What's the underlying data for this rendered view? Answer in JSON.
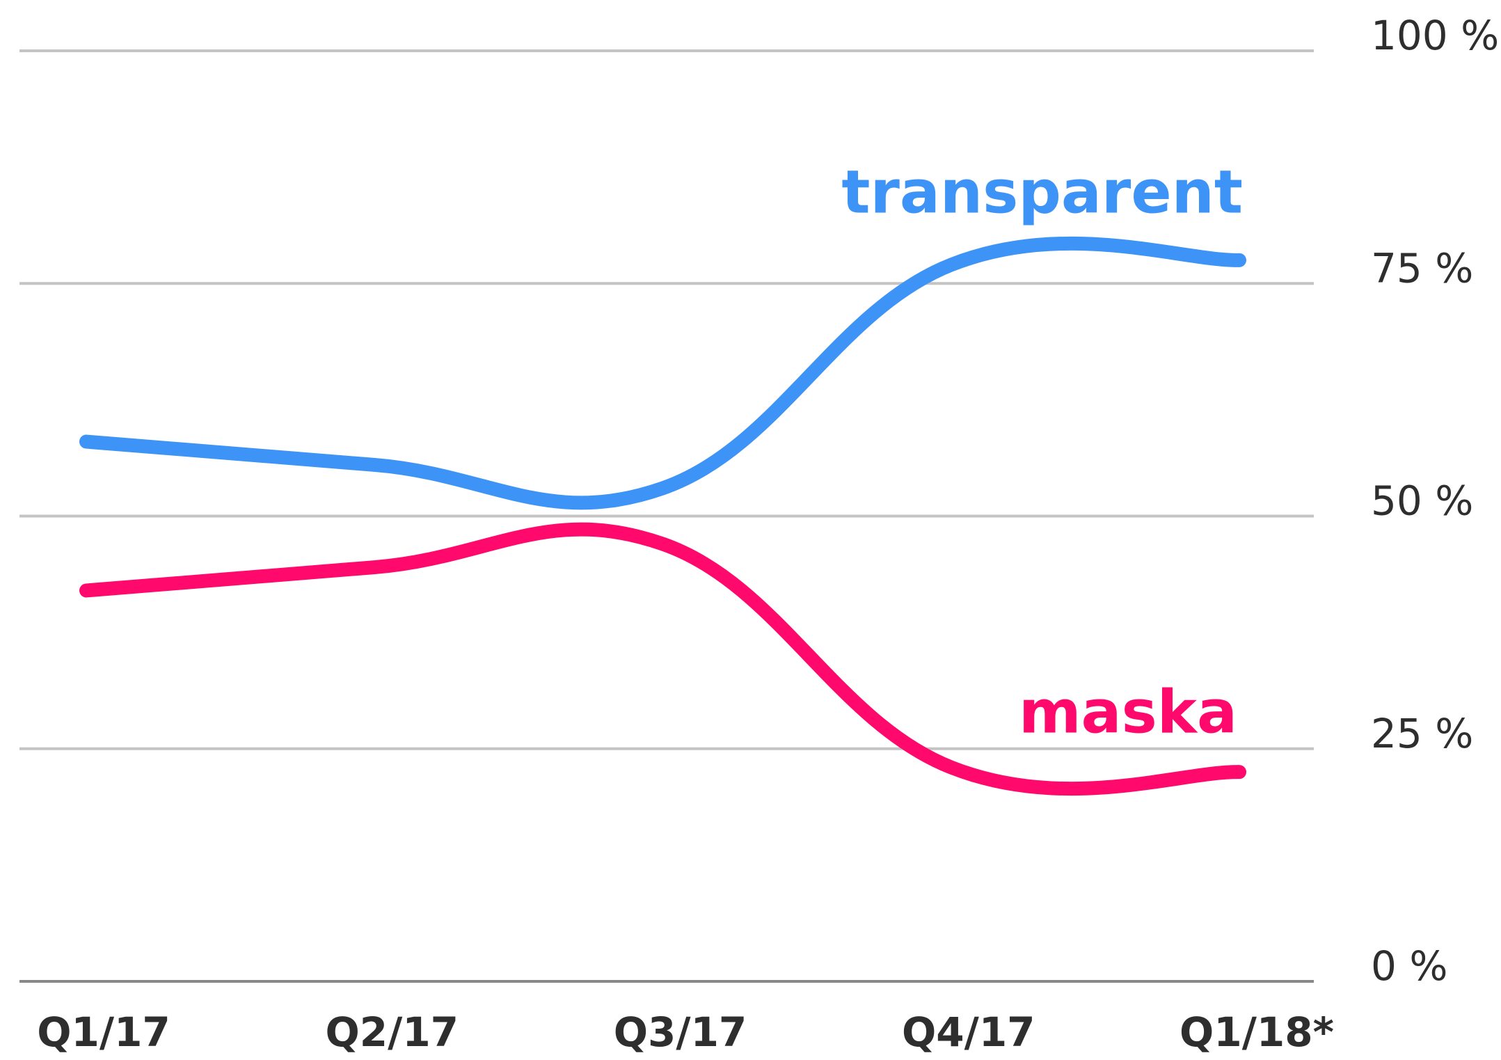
{
  "chart_data": {
    "type": "line",
    "categories": [
      "Q1/17",
      "Q2/17",
      "Q3/17",
      "Q4/17",
      "Q1/18*"
    ],
    "series": [
      {
        "name": "transparent",
        "color": "#3d94f6",
        "values": [
          58,
          55.5,
          53,
          77,
          77.5
        ]
      },
      {
        "name": "maska",
        "color": "#ff0a6c",
        "values": [
          42,
          44.5,
          47,
          23,
          22.5
        ]
      }
    ],
    "ylim": [
      0,
      100
    ],
    "yticks": [
      {
        "value": 0,
        "label": "0 %"
      },
      {
        "value": 25,
        "label": "25 %"
      },
      {
        "value": 50,
        "label": "50 %"
      },
      {
        "value": 75,
        "label": "75 %"
      },
      {
        "value": 100,
        "label": "100 %"
      }
    ],
    "grid": true
  }
}
